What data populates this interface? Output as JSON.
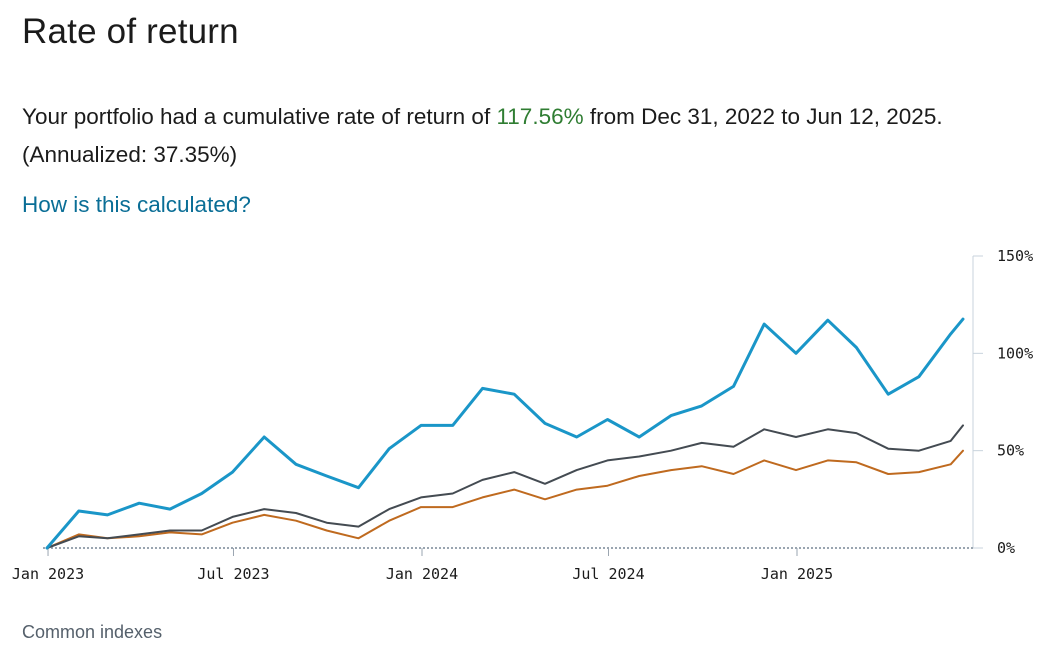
{
  "header": {
    "title": "Rate of return"
  },
  "summary": {
    "prefix": "Your portfolio had a cumulative rate of return of ",
    "cumulative_return": "117.56%",
    "middle": " from Dec 31, 2022 to Jun 12, 2025. (Annualized: ",
    "annualized_return": "37.35%",
    "suffix": ")"
  },
  "links": {
    "how_calculated": "How is this calculated?"
  },
  "footer": {
    "common_indexes": "Common indexes"
  },
  "colors": {
    "portfolio": "#1a96c8",
    "index_gray": "#444b52",
    "index_orange": "#bf6a1f",
    "positive_text": "#2f7d32",
    "link": "#0a6e96",
    "grid": "#c8d3dc",
    "zero_line": "#9aa5b0"
  },
  "chart_data": {
    "type": "line",
    "title": "",
    "xlabel": "",
    "ylabel": "",
    "x": [
      "2022-12-31",
      "2023-01-31",
      "2023-02-28",
      "2023-03-31",
      "2023-04-30",
      "2023-05-31",
      "2023-06-30",
      "2023-07-31",
      "2023-08-31",
      "2023-09-30",
      "2023-10-31",
      "2023-11-30",
      "2023-12-31",
      "2024-01-31",
      "2024-02-29",
      "2024-03-31",
      "2024-04-30",
      "2024-05-31",
      "2024-06-30",
      "2024-07-31",
      "2024-08-31",
      "2024-09-30",
      "2024-10-31",
      "2024-11-30",
      "2024-12-31",
      "2025-01-31",
      "2025-02-28",
      "2025-03-31",
      "2025-04-30",
      "2025-05-31",
      "2025-06-12"
    ],
    "x_ticks": [
      {
        "date": "2023-01-01",
        "label": "Jan 2023"
      },
      {
        "date": "2023-07-01",
        "label": "Jul 2023"
      },
      {
        "date": "2024-01-01",
        "label": "Jan 2024"
      },
      {
        "date": "2024-07-01",
        "label": "Jul 2024"
      },
      {
        "date": "2025-01-01",
        "label": "Jan 2025"
      }
    ],
    "y_ticks": [
      {
        "value": 0,
        "label": "0%"
      },
      {
        "value": 50,
        "label": "50%"
      },
      {
        "value": 100,
        "label": "100%"
      },
      {
        "value": 150,
        "label": "150%"
      }
    ],
    "ylim": [
      0,
      150
    ],
    "series": [
      {
        "color": "#1a96c8",
        "values": [
          0,
          19,
          17,
          23,
          20,
          28,
          39,
          57,
          43,
          37,
          31,
          51,
          63,
          63,
          82,
          79,
          64,
          57,
          66,
          57,
          68,
          73,
          83,
          115,
          100,
          117,
          103,
          79,
          88,
          110,
          117.56
        ]
      },
      {
        "color": "#444b52",
        "values": [
          0,
          6,
          5,
          7,
          9,
          9,
          16,
          20,
          18,
          13,
          11,
          20,
          26,
          28,
          35,
          39,
          33,
          40,
          45,
          47,
          50,
          54,
          52,
          61,
          57,
          61,
          59,
          51,
          50,
          55,
          63
        ]
      },
      {
        "color": "#bf6a1f",
        "values": [
          0,
          7,
          5,
          6,
          8,
          7,
          13,
          17,
          14,
          9,
          5,
          14,
          21,
          21,
          26,
          30,
          25,
          30,
          32,
          37,
          40,
          42,
          38,
          45,
          40,
          45,
          44,
          38,
          39,
          43,
          50
        ]
      }
    ],
    "grid": false,
    "legend": "none"
  }
}
